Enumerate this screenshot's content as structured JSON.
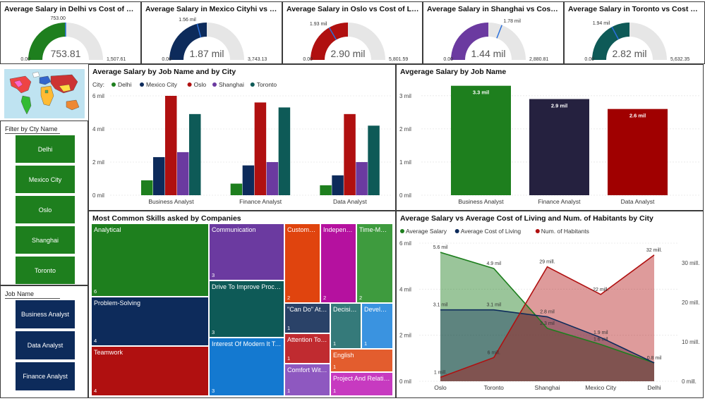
{
  "gauges": [
    {
      "title": "Average Salary in Delhi vs Cost of Living",
      "value_label": "753.81",
      "target_label": "753.00",
      "min_label": "0.00",
      "max_label": "1,507.61",
      "fraction": 0.5,
      "target_fraction": 0.4995,
      "color": "#1e7f1e"
    },
    {
      "title": "Average Salary in Mexico Cityhi vs Cost of Living",
      "value_label": "1.87 mil",
      "target_label": "1.56 mil",
      "min_label": "0.00",
      "max_label": "3,743.13",
      "fraction": 0.5,
      "target_fraction": 0.417,
      "color": "#0d2b5b"
    },
    {
      "title": "Average Salary in Oslo vs Cost of Living",
      "value_label": "2.90 mil",
      "target_label": "1.93 mil",
      "min_label": "0.00",
      "max_label": "5,801.59",
      "fraction": 0.5,
      "target_fraction": 0.333,
      "color": "#b01010"
    },
    {
      "title": "Average Salary in Shanghai vs Cost of Living",
      "value_label": "1.44 mil",
      "target_label": "1.78 mil",
      "min_label": "0.00",
      "max_label": "2,880.81",
      "fraction": 0.5,
      "target_fraction": 0.618,
      "color": "#6b3aa0"
    },
    {
      "title": "Average Salary in Toronto vs Cost of Living",
      "value_label": "2.82 mil",
      "target_label": "1.94 mil",
      "min_label": "0.00",
      "max_label": "5,632.35",
      "fraction": 0.5,
      "target_fraction": 0.344,
      "color": "#0e5a57"
    }
  ],
  "city_filter": {
    "title": "Filter by Cty Name",
    "items": [
      "Delhi",
      "Mexico City",
      "Oslo",
      "Shanghai",
      "Toronto"
    ],
    "color": "#1e7f1e"
  },
  "job_filter": {
    "title": "Job Name",
    "items": [
      "Business Analyst",
      "Data Analyst",
      "Finance Analyst"
    ],
    "color": "#0d2b5b"
  },
  "treemap": {
    "title": "Most Common Skills asked by Companies",
    "items": [
      {
        "label": "Analytical",
        "count": "6",
        "color": "#1e7f1e"
      },
      {
        "label": "Problem-Solving",
        "count": "4",
        "color": "#0d2b5b"
      },
      {
        "label": "Teamwork",
        "count": "4",
        "color": "#b01010"
      },
      {
        "label": "Communication",
        "count": "3",
        "color": "#6b3aa0"
      },
      {
        "label": "Drive To Improve Processes",
        "count": "3",
        "color": "#0e5a57"
      },
      {
        "label": "Interest Of Modern It Tools",
        "count": "3",
        "color": "#1479d0"
      },
      {
        "label": "Customer Focus",
        "count": "2",
        "color": "#e0440e"
      },
      {
        "label": "Independence",
        "count": "2",
        "color": "#b5119f"
      },
      {
        "label": "Time-Management",
        "count": "2",
        "color": "#3e9b3e"
      },
      {
        "label": "\"Can Do\" Attitude",
        "count": "1",
        "color": "#2a4268"
      },
      {
        "label": "Decision-Making",
        "count": "1",
        "color": "#357a7a"
      },
      {
        "label": "Development",
        "count": "1",
        "color": "#3a93e0"
      },
      {
        "label": "Attention To Detail",
        "count": "1",
        "color": "#c02b30"
      },
      {
        "label": "English",
        "count": "1",
        "color": "#e35d2e"
      },
      {
        "label": "Comfort With Numbers",
        "count": "1",
        "color": "#8e58c0"
      },
      {
        "label": "Project And Relationship",
        "count": "1",
        "color": "#c73ac0"
      }
    ]
  },
  "chart_data": [
    {
      "type": "bar",
      "title": "Average Salary by Job Name and by City",
      "legend_title": "City:",
      "categories": [
        "Business Analyst",
        "Finance Analyst",
        "Data Analyst"
      ],
      "series": [
        {
          "name": "Delhi",
          "color": "#1e7f1e",
          "values": [
            0.9,
            0.7,
            0.6
          ]
        },
        {
          "name": "Mexico City",
          "color": "#0d2b5b",
          "values": [
            2.3,
            1.8,
            1.2
          ]
        },
        {
          "name": "Oslo",
          "color": "#b01010",
          "values": [
            6.0,
            5.6,
            4.9
          ]
        },
        {
          "name": "Shanghai",
          "color": "#6b3aa0",
          "values": [
            2.6,
            2.0,
            2.0
          ]
        },
        {
          "name": "Toronto",
          "color": "#0e5a57",
          "values": [
            4.9,
            5.3,
            4.2
          ]
        }
      ],
      "yticks": [
        "0 mil",
        "2 mil",
        "4 mil",
        "6 mil"
      ],
      "ylim": [
        0,
        6
      ]
    },
    {
      "type": "bar",
      "title": "Avgerage Salary by Job Name",
      "categories": [
        "Business Analyst",
        "Finance Analyst",
        "Data Analyst"
      ],
      "values": [
        3.3,
        2.9,
        2.6
      ],
      "data_labels": [
        "3.3 mil",
        "2.9 mil",
        "2.6 mil"
      ],
      "colors": [
        "#1e7f1e",
        "#25213f",
        "#a00000"
      ],
      "yticks": [
        "0 mil",
        "1 mil",
        "2 mil",
        "3 mil"
      ],
      "ylim": [
        0,
        3.4
      ]
    },
    {
      "type": "area",
      "title": "Average Salary vs Average Cost of Living and Num. of Habitants by City",
      "categories": [
        "Oslo",
        "Toronto",
        "Shanghai",
        "Mexico City",
        "Delhi"
      ],
      "series": [
        {
          "name": "Average Salary",
          "axis": "left",
          "color": "#1e7f1e",
          "values": [
            5.6,
            4.9,
            2.3,
            1.6,
            0.8
          ],
          "labels": [
            "5.6 mil",
            "4.9 mil",
            "2.3 mil",
            "1.6 mil",
            "0.8 mil"
          ]
        },
        {
          "name": "Average Cost of Living",
          "axis": "left",
          "color": "#0d2b5b",
          "values": [
            3.1,
            3.1,
            2.8,
            1.9,
            0.8
          ],
          "labels": [
            "3.1 mil",
            "3.1 mil",
            "2.8 mil",
            "1.9 mil",
            ""
          ]
        },
        {
          "name": "Num. of Habitants",
          "axis": "right",
          "color": "#b01010",
          "values": [
            1,
            6,
            29,
            22,
            32
          ],
          "labels": [
            "1 mill.",
            "6 mill.",
            "29 mill.",
            "22 mill.",
            "32 mill."
          ]
        }
      ],
      "yticks_left": [
        "0 mil",
        "2 mil",
        "4 mil",
        "6 mil"
      ],
      "ylim_left": [
        0,
        6
      ],
      "yticks_right": [
        "0 mill.",
        "10 mill.",
        "20 mill.",
        "30 mill."
      ],
      "ylim_right": [
        0,
        35
      ]
    }
  ]
}
